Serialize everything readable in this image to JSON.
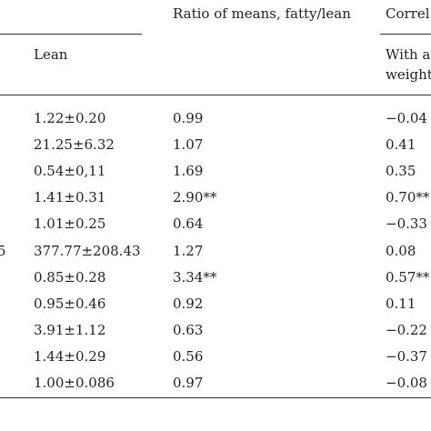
{
  "table": {
    "headers": {
      "ratio": "Ratio of means, fatty/lean",
      "correlation": "Correl"
    },
    "subheaders": {
      "lean": "Lean",
      "with_line1": "With a",
      "with_line2": "weight"
    },
    "row_stub": [
      "",
      "",
      "",
      "",
      "",
      "5",
      "",
      "",
      "",
      "",
      ""
    ],
    "rows": [
      {
        "lean": "1.22±0.20",
        "ratio": "0.99",
        "corr": "−0.04"
      },
      {
        "lean": "21.25±6.32",
        "ratio": "1.07",
        "corr": "0.41"
      },
      {
        "lean": "0.54±0,11",
        "ratio": "1.69",
        "corr": "0.35"
      },
      {
        "lean": "1.41±0.31",
        "ratio": "2.90**",
        "corr": "0.70**"
      },
      {
        "lean": "1.01±0.25",
        "ratio": "0.64",
        "corr": "−0.33"
      },
      {
        "lean": "377.77±208.43",
        "ratio": "1.27",
        "corr": "0.08"
      },
      {
        "lean": "0.85±0.28",
        "ratio": "3.34**",
        "corr": "0.57**"
      },
      {
        "lean": "0.95±0.46",
        "ratio": "0.92",
        "corr": "0.11"
      },
      {
        "lean": "3.91±1.12",
        "ratio": "0.63",
        "corr": "−0.22"
      },
      {
        "lean": "1.44±0.29",
        "ratio": "0.56",
        "corr": "−0.37"
      },
      {
        "lean": "1.00±0.086",
        "ratio": "0.97",
        "corr": "−0.08"
      }
    ]
  }
}
